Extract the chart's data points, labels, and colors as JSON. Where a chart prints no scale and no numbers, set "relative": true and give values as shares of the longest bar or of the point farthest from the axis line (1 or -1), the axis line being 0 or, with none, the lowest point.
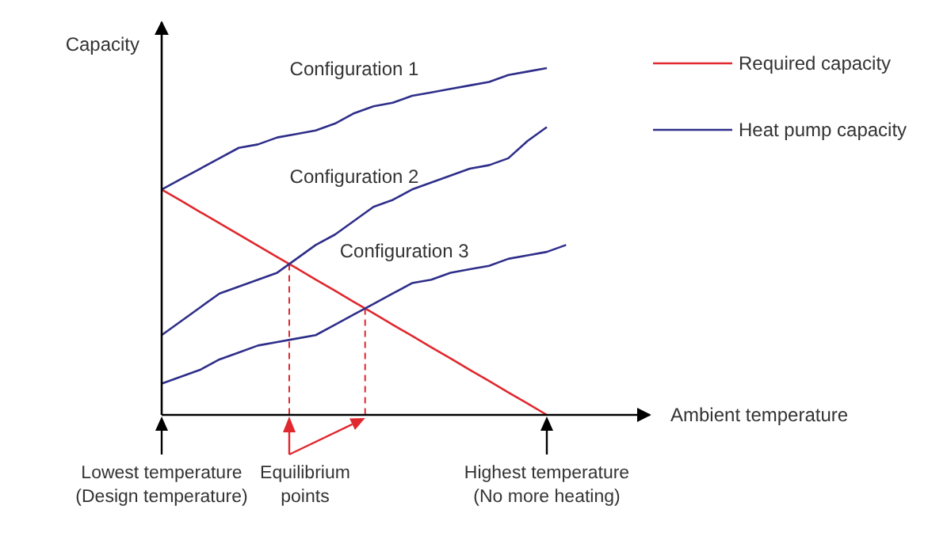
{
  "chart_data": {
    "type": "line",
    "relative": true,
    "ylabel": "Capacity",
    "xlabel": "Ambient temperature",
    "categories": [
      "Lowest temperature\n(Design temperature)",
      null,
      null,
      null,
      null,
      null,
      null,
      null,
      null,
      null,
      null,
      null,
      null,
      null,
      null,
      null,
      null,
      null,
      null,
      null,
      "Highest temperature\n(No more heating)",
      null
    ],
    "tick_labels": "x",
    "legend": "top right",
    "annotations": [
      "Equilibrium\npoints",
      "Heat pump capacity"
    ],
    "series": [
      {
        "name": "Required capacity",
        "color": "#e0282e",
        "values": [
          0.65,
          0.618,
          0.585,
          0.553,
          0.52,
          0.488,
          0.455,
          0.423,
          0.39,
          0.358,
          0.325,
          0.293,
          0.26,
          0.228,
          0.195,
          0.163,
          0.13,
          0.098,
          0.065,
          0.033,
          0,
          null
        ]
      },
      {
        "name": "Configuration 1",
        "color": "#2e2e8a",
        "values": [
          0.65,
          0.68,
          0.71,
          0.74,
          0.77,
          0.78,
          0.8,
          0.81,
          0.82,
          0.84,
          0.87,
          0.89,
          0.9,
          0.92,
          0.93,
          0.94,
          0.95,
          0.96,
          0.98,
          0.99,
          1,
          null
        ]
      },
      {
        "name": "Configuration 2",
        "color": "#2e2e8a",
        "values": [
          0.23,
          0.27,
          0.31,
          0.35,
          0.37,
          0.39,
          0.41,
          0.45,
          0.49,
          0.52,
          0.56,
          0.6,
          0.62,
          0.65,
          0.67,
          0.69,
          0.71,
          0.72,
          0.74,
          0.79,
          0.83,
          null
        ]
      },
      {
        "name": "Configuration 3",
        "color": "#2e2e8a",
        "values": [
          0.09,
          0.11,
          0.13,
          0.16,
          0.18,
          0.2,
          0.21,
          0.22,
          0.23,
          0.26,
          0.29,
          0.32,
          0.35,
          0.38,
          0.39,
          0.41,
          0.42,
          0.43,
          0.45,
          0.46,
          0.47,
          0.49
        ]
      }
    ]
  }
}
